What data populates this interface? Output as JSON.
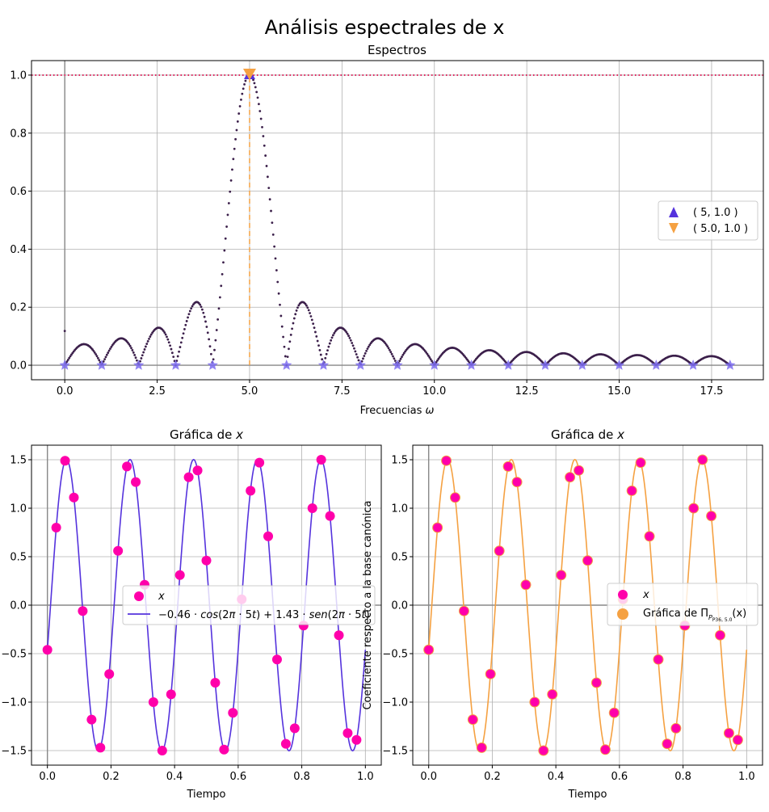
{
  "figure": {
    "title": "Análisis espectrales de x"
  },
  "chart_data": [
    {
      "id": "spectrum",
      "type": "scatter",
      "title": "Espectros",
      "xlabel": "Frecuencias ω",
      "ylabel": "",
      "xlim": [
        -0.9,
        18.9
      ],
      "ylim": [
        -0.05,
        1.05
      ],
      "xticks": [
        "0.0",
        "2.5",
        "5.0",
        "7.5",
        "10.0",
        "12.5",
        "15.0",
        "17.5"
      ],
      "xtick_values": [
        0,
        2.5,
        5,
        7.5,
        10,
        12.5,
        15,
        17.5
      ],
      "yticks": [
        "0.0",
        "0.2",
        "0.4",
        "0.6",
        "0.8",
        "1.0"
      ],
      "ytick_values": [
        0,
        0.2,
        0.4,
        0.6,
        0.8,
        1.0
      ],
      "grid": true,
      "legend_position": "center-right",
      "series": [
        {
          "name": "( 5, 1.0 )",
          "marker": "triangle-up",
          "color": "#5533dd",
          "x": [
            0,
            1,
            2,
            3,
            4,
            5,
            6,
            7,
            8,
            9,
            10,
            11,
            12,
            13,
            14,
            15,
            16,
            17,
            18
          ],
          "y": [
            0,
            0,
            0,
            0,
            0,
            1.0,
            0,
            0,
            0,
            0,
            0,
            0,
            0,
            0,
            0,
            0,
            0,
            0,
            0
          ]
        },
        {
          "name": "( 5.0, 1.0 )",
          "marker": "triangle-down",
          "color": "#f5a142",
          "x": [
            5.0
          ],
          "y": [
            1.0
          ]
        }
      ],
      "continuous_spectrum": {
        "color": "#3b1f4a",
        "x_range": [
          0,
          18
        ],
        "peak_x": 5,
        "peak_y": 1.0,
        "n": 36,
        "T": 1
      },
      "reference_line": {
        "y": 1.0,
        "color": "#e0245e",
        "style": "dotted"
      },
      "peak_guide": {
        "x": 5.0,
        "color": "#f5a142",
        "style": "dashed"
      },
      "discrete_markers": {
        "marker": "star",
        "color": "#7c6cf0"
      }
    },
    {
      "id": "signal-left",
      "type": "line",
      "title": "Gráfica de x",
      "xlabel": "Tiempo",
      "ylabel": "",
      "xlim": [
        -0.05,
        1.05
      ],
      "ylim": [
        -1.65,
        1.65
      ],
      "xticks": [
        "0.0",
        "0.2",
        "0.4",
        "0.6",
        "0.8",
        "1.0"
      ],
      "xtick_values": [
        0,
        0.2,
        0.4,
        0.6,
        0.8,
        1.0
      ],
      "yticks": [
        "−1.5",
        "−1.0",
        "−0.5",
        "0.0",
        "0.5",
        "1.0",
        "1.5"
      ],
      "ytick_values": [
        -1.5,
        -1.0,
        -0.5,
        0,
        0.5,
        1.0,
        1.5
      ],
      "grid": true,
      "legend_position": "center",
      "series": [
        {
          "name": "x",
          "kind": "points",
          "color": "#ff00aa",
          "x": [
            0.0,
            0.0278,
            0.0556,
            0.0833,
            0.1111,
            0.1389,
            0.1667,
            0.1944,
            0.2222,
            0.25,
            0.2778,
            0.3056,
            0.3333,
            0.3611,
            0.3889,
            0.4167,
            0.4444,
            0.4722,
            0.5,
            0.5278,
            0.5556,
            0.5833,
            0.6111,
            0.6389,
            0.6667,
            0.6944,
            0.7222,
            0.75,
            0.7778,
            0.8056,
            0.8333,
            0.8611,
            0.8889,
            0.9167,
            0.9444,
            0.9722
          ],
          "y": [
            -0.46,
            0.8,
            1.49,
            1.11,
            -0.06,
            -1.18,
            -1.47,
            -0.71,
            0.56,
            1.43,
            1.27,
            0.21,
            -1.0,
            -1.5,
            -0.92,
            0.31,
            1.32,
            1.39,
            0.46,
            -0.8,
            -1.49,
            -1.11,
            0.06,
            1.18,
            1.47,
            0.71,
            -0.56,
            -1.43,
            -1.27,
            -0.21,
            1.0,
            1.5,
            0.92,
            -0.31,
            -1.32,
            -1.39
          ]
        },
        {
          "name": "−0.46 · cos(2π · 5t) + 1.43 · sen(2π · 5t)",
          "kind": "line",
          "color": "#5533dd",
          "formula": {
            "a": -0.46,
            "b": 1.43,
            "freq": 5
          }
        }
      ]
    },
    {
      "id": "signal-right",
      "type": "line",
      "title": "Gráfica de x",
      "xlabel": "Tiempo",
      "ylabel": "Coeficiente respecto a la base canónica",
      "xlim": [
        -0.05,
        1.05
      ],
      "ylim": [
        -1.65,
        1.65
      ],
      "xticks": [
        "0.0",
        "0.2",
        "0.4",
        "0.6",
        "0.8",
        "1.0"
      ],
      "xtick_values": [
        0,
        0.2,
        0.4,
        0.6,
        0.8,
        1.0
      ],
      "yticks": [
        "−1.5",
        "−1.0",
        "−0.5",
        "0.0",
        "0.5",
        "1.0",
        "1.5"
      ],
      "ytick_values": [
        -1.5,
        -1.0,
        -0.5,
        0,
        0.5,
        1.0,
        1.5
      ],
      "grid": true,
      "legend_position": "center-right",
      "series": [
        {
          "name": "x",
          "kind": "points",
          "color": "#ff00aa",
          "x": [
            0.0,
            0.0278,
            0.0556,
            0.0833,
            0.1111,
            0.1389,
            0.1667,
            0.1944,
            0.2222,
            0.25,
            0.2778,
            0.3056,
            0.3333,
            0.3611,
            0.3889,
            0.4167,
            0.4444,
            0.4722,
            0.5,
            0.5278,
            0.5556,
            0.5833,
            0.6111,
            0.6389,
            0.6667,
            0.6944,
            0.7222,
            0.75,
            0.7778,
            0.8056,
            0.8333,
            0.8611,
            0.8889,
            0.9167,
            0.9444,
            0.9722
          ],
          "y": [
            -0.46,
            0.8,
            1.49,
            1.11,
            -0.06,
            -1.18,
            -1.47,
            -0.71,
            0.56,
            1.43,
            1.27,
            0.21,
            -1.0,
            -1.5,
            -0.92,
            0.31,
            1.32,
            1.39,
            0.46,
            -0.8,
            -1.49,
            -1.11,
            0.06,
            1.18,
            1.47,
            0.71,
            -0.56,
            -1.43,
            -1.27,
            -0.21,
            1.0,
            1.5,
            0.92,
            -0.31,
            -1.32,
            -1.39
          ]
        },
        {
          "name": "Gráfica de Π",
          "name_subscript": "P36, 5.0",
          "name_suffix": "(x)",
          "kind": "line",
          "color": "#f5a142",
          "formula": {
            "a": -0.46,
            "b": 1.43,
            "freq": 5
          }
        }
      ]
    }
  ]
}
